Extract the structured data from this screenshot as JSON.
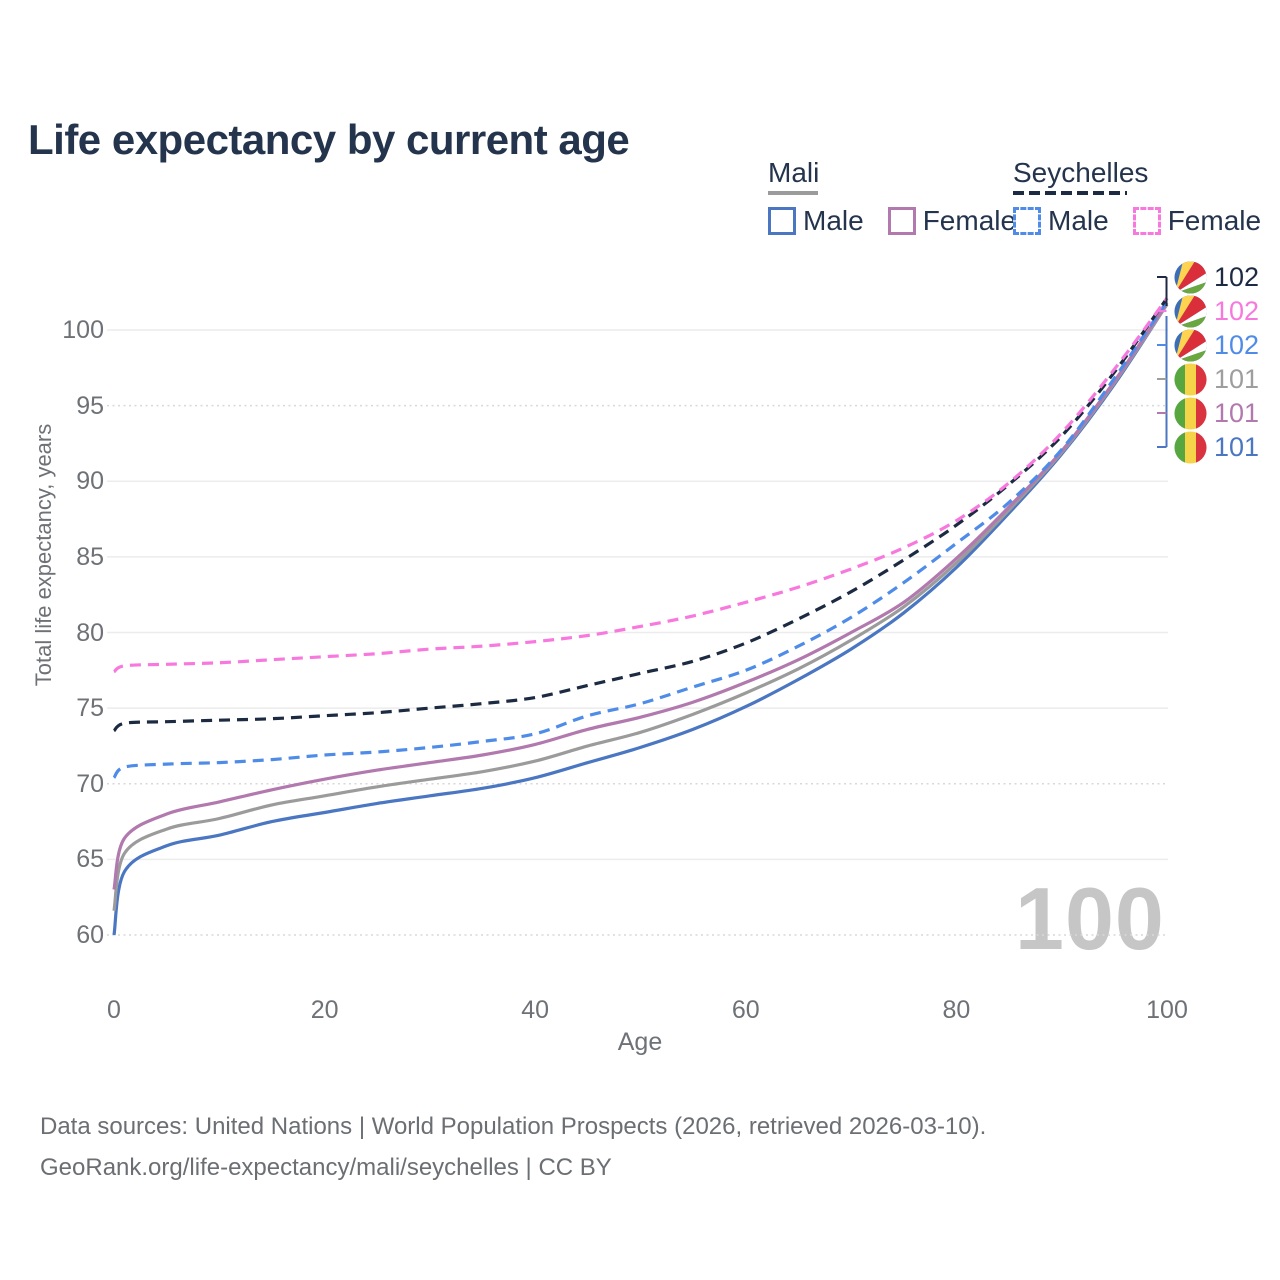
{
  "title": "Life expectancy by current age",
  "watermark": "100",
  "legend": {
    "groups": [
      {
        "name": "Mali",
        "underline_style": "solid",
        "underline_color": "#9b9b9b",
        "items": [
          {
            "label": "Male",
            "color": "#4a76c2",
            "dashed": false
          },
          {
            "label": "Female",
            "color": "#b279ae",
            "dashed": false
          }
        ]
      },
      {
        "name": "Seychelles",
        "underline_style": "dashed",
        "underline_color": "#1c2b42",
        "items": [
          {
            "label": "Male",
            "color": "#4f8ce8",
            "dashed": true
          },
          {
            "label": "Female",
            "color": "#f879de",
            "dashed": true
          }
        ]
      }
    ]
  },
  "axes": {
    "y_label": "Total life expectancy, years",
    "x_label": "Age",
    "y_ticks": [
      100,
      95,
      90,
      85,
      80,
      75,
      70,
      65,
      60
    ],
    "dotted_y_ticks": [
      95,
      70,
      60
    ],
    "x_ticks": [
      0,
      20,
      40,
      60,
      80,
      100
    ]
  },
  "end_labels": [
    {
      "value": "102",
      "flag": "seychelles",
      "color": "#1c2b42"
    },
    {
      "value": "102",
      "flag": "seychelles",
      "color": "#f879de"
    },
    {
      "value": "102",
      "flag": "seychelles",
      "color": "#4f8ce8"
    },
    {
      "value": "101",
      "flag": "mali",
      "color": "#9e9e9e"
    },
    {
      "value": "101",
      "flag": "mali",
      "color": "#b279ae"
    },
    {
      "value": "101",
      "flag": "mali",
      "color": "#4a76c2"
    }
  ],
  "footer": {
    "line1": "Data sources: United Nations | World Population Prospects (2026, retrieved 2026-03-10).",
    "line2": "GeoRank.org/life-expectancy/mali/seychelles | CC BY"
  },
  "chart_data": {
    "type": "line",
    "title": "Life expectancy by current age",
    "xlabel": "Age",
    "ylabel": "Total life expectancy, years",
    "xlim": [
      0,
      100
    ],
    "ylim": [
      60,
      100
    ],
    "grid": true,
    "legend_position": "top-right",
    "x": [
      0,
      1,
      5,
      10,
      15,
      20,
      25,
      30,
      35,
      40,
      45,
      50,
      55,
      60,
      65,
      70,
      75,
      80,
      85,
      90,
      95,
      100
    ],
    "series": [
      {
        "key": "mali-male",
        "name": "Mali Male",
        "color": "#4a76c2",
        "dash": false,
        "values": [
          60.0,
          64.2,
          65.9,
          66.6,
          67.5,
          68.1,
          68.7,
          69.2,
          69.7,
          70.4,
          71.4,
          72.4,
          73.6,
          75.1,
          76.9,
          78.9,
          81.3,
          84.3,
          87.9,
          91.8,
          96.4,
          101.7
        ]
      },
      {
        "key": "mali-both",
        "name": "Mali Both sexes",
        "color": "#9b9b9b",
        "dash": false,
        "values": [
          61.6,
          65.4,
          67.0,
          67.7,
          68.6,
          69.2,
          69.8,
          70.3,
          70.8,
          71.5,
          72.5,
          73.4,
          74.6,
          76.0,
          77.6,
          79.5,
          81.7,
          84.6,
          88.1,
          91.9,
          96.5,
          101.7
        ]
      },
      {
        "key": "mali-female",
        "name": "Mali Female",
        "color": "#b279ae",
        "dash": false,
        "values": [
          63.0,
          66.4,
          68.0,
          68.8,
          69.6,
          70.3,
          70.9,
          71.4,
          71.9,
          72.6,
          73.6,
          74.4,
          75.4,
          76.7,
          78.2,
          80.0,
          82.0,
          84.9,
          88.3,
          92.0,
          96.6,
          101.8
        ]
      },
      {
        "key": "seychelles-male",
        "name": "Seychelles Male",
        "color": "#4f8ce8",
        "dash": true,
        "values": [
          70.4,
          71.1,
          71.3,
          71.4,
          71.6,
          71.9,
          72.1,
          72.4,
          72.8,
          73.3,
          74.5,
          75.3,
          76.4,
          77.5,
          79.1,
          81.0,
          83.3,
          85.9,
          88.6,
          92.1,
          96.8,
          101.9
        ]
      },
      {
        "key": "seychelles-both",
        "name": "Seychelles Both sexes",
        "color": "#1c2b42",
        "dash": true,
        "values": [
          73.5,
          74.0,
          74.1,
          74.2,
          74.3,
          74.5,
          74.7,
          75.0,
          75.3,
          75.7,
          76.5,
          77.3,
          78.1,
          79.3,
          80.9,
          82.7,
          84.8,
          87.1,
          89.8,
          93.0,
          97.2,
          102.1
        ]
      },
      {
        "key": "seychelles-female",
        "name": "Seychelles Female",
        "color": "#f879de",
        "dash": true,
        "values": [
          77.4,
          77.8,
          77.9,
          78.0,
          78.2,
          78.4,
          78.6,
          78.9,
          79.1,
          79.4,
          79.8,
          80.4,
          81.1,
          82.0,
          83.0,
          84.2,
          85.6,
          87.4,
          89.9,
          93.2,
          97.4,
          102.1
        ]
      }
    ]
  }
}
